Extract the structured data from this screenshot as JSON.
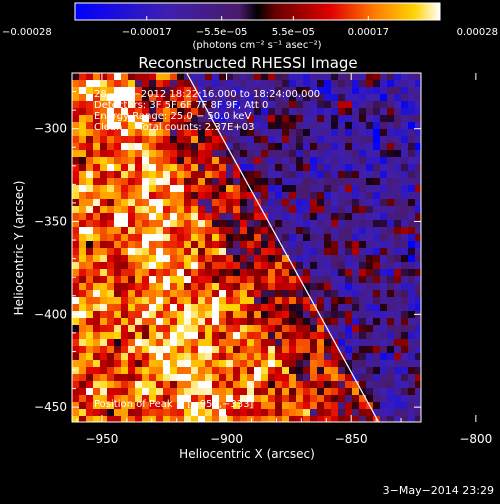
{
  "chart_data": {
    "type": "heatmap",
    "title": "Reconstructed RHESSI Image",
    "xlabel": "Heliocentric X (arcsec)",
    "ylabel": "Heliocentric Y (arcsec)",
    "xlim": [
      -962,
      -822
    ],
    "ylim": [
      -458,
      -270
    ],
    "x_ticks": [
      -950,
      -900,
      -850,
      -800
    ],
    "x_tick_labels": [
      "−950",
      "−900",
      "−850",
      "−800"
    ],
    "y_ticks": [
      -450,
      -400,
      -350,
      -300
    ],
    "y_tick_labels": [
      "−450",
      "−400",
      "−350",
      "−300"
    ],
    "colorbar": {
      "min": -0.00028,
      "max": 0.00028,
      "ticks": [
        -0.00028,
        -0.00017,
        -5.5e-05,
        5.5e-05,
        0.00017,
        0.00028
      ],
      "tick_labels": [
        "−0.00028",
        "−0.00017",
        "−5.5e−05",
        "5.5e−05",
        "0.00017",
        "0.00028"
      ],
      "unit_label": "(photons cm⁻² s⁻¹ asec⁻²)"
    },
    "annotations": [
      "28−Apr−2012 18:22:16.000 to 18:24:00.000",
      "Detectors: 3F 5F 6F 7F 8F 9F, Att 0",
      "Energy Range: 25.0 − 50.0 keV",
      "Clean     Total counts: 2.37E+03"
    ],
    "peak_label": "Position of Peak = [−952,−333]",
    "limb_line": {
      "x": [
        -916,
        -839
      ],
      "y": [
        -270,
        -458
      ]
    },
    "grid": false
  },
  "footer": {
    "timestamp": "3−May−2014 23:29"
  }
}
